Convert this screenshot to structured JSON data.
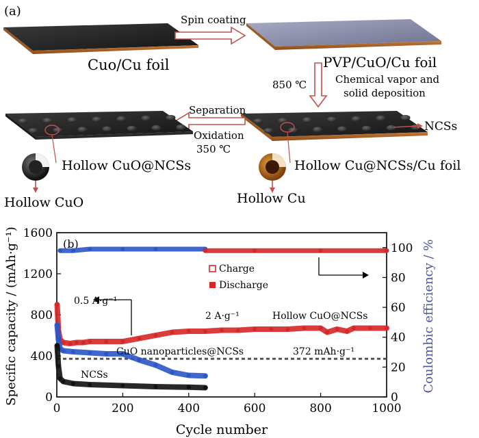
{
  "panel_a": {
    "label": "(a)",
    "step_spin": "Spin coating",
    "foil_1": "Cuo/Cu foil",
    "foil_2": "PVP/CuO/Cu foil",
    "temp_850": "850 ℃",
    "cvd_line1": "Chemical vapor and",
    "cvd_line2": "solid deposition",
    "ncss": "NCSs",
    "sep": "Separation",
    "oxid": "Oxidation",
    "temp_350": "350 ℃",
    "hollow_cuo_ncss": "Hollow CuO@NCSs",
    "hollow_cu_ncss": "Hollow Cu@NCSs/Cu foil",
    "hollow_cuo": "Hollow CuO",
    "hollow_cu": "Hollow Cu",
    "colors": {
      "copper": "#b5651d",
      "dark_film": "#2a2a2a",
      "pvp_film": "#8c8fa8",
      "arrow": "#c0504d"
    }
  },
  "panel_b": {
    "label": "(b)",
    "legend": {
      "charge": "Charge",
      "discharge": "Discharge"
    },
    "ann_current": "0.5 A·g⁻¹",
    "ann_current2": "2 A·g⁻¹",
    "ann_hollow": "Hollow CuO@NCSs",
    "ann_cuo": "CuO nanoparticles@NCSs",
    "ann_ncss": "NCSs",
    "ann_372": "372 mAh·g⁻¹"
  },
  "chart_data": {
    "type": "line",
    "xlabel": "Cycle number",
    "ylabel": "Specific capacity / (mAh·g⁻¹)",
    "y2label": "Coulombic efficiency / %",
    "xlim": [
      0,
      1000
    ],
    "ylim": [
      0,
      1600
    ],
    "y2lim": [
      0,
      110
    ],
    "xticks": [
      0,
      200,
      400,
      600,
      800,
      1000
    ],
    "yticks": [
      0,
      400,
      800,
      1200,
      1600
    ],
    "y2ticks": [
      0,
      20,
      40,
      60,
      80,
      100
    ],
    "reference_line": {
      "y": 372,
      "style": "dashed"
    },
    "series": [
      {
        "name": "Hollow CuO@NCSs",
        "color": "#d62728",
        "axis": "left",
        "x": [
          1,
          5,
          10,
          20,
          40,
          60,
          80,
          100,
          150,
          200,
          250,
          300,
          350,
          400,
          450,
          500,
          550,
          600,
          650,
          700,
          750,
          800,
          820,
          850,
          880,
          900,
          950,
          1000
        ],
        "y": [
          900,
          650,
          560,
          530,
          520,
          530,
          530,
          540,
          540,
          540,
          570,
          600,
          630,
          640,
          640,
          650,
          650,
          660,
          660,
          660,
          670,
          670,
          630,
          660,
          640,
          670,
          670,
          670
        ]
      },
      {
        "name": "CuO nanoparticles@NCSs",
        "color": "#2a56c6",
        "axis": "left",
        "x": [
          1,
          5,
          10,
          20,
          50,
          100,
          150,
          200,
          250,
          300,
          350,
          400,
          450
        ],
        "y": [
          700,
          560,
          470,
          450,
          440,
          430,
          420,
          420,
          360,
          310,
          240,
          210,
          205
        ]
      },
      {
        "name": "NCSs",
        "color": "#111111",
        "axis": "left",
        "x": [
          1,
          5,
          10,
          20,
          50,
          100,
          200,
          300,
          400,
          450
        ],
        "y": [
          500,
          300,
          180,
          150,
          130,
          120,
          110,
          100,
          95,
          90
        ]
      },
      {
        "name": "Coulombic efficiency",
        "color": "#2a56c6",
        "axis": "right",
        "x": [
          10,
          50,
          100,
          200,
          300,
          450
        ],
        "y": [
          98,
          98,
          99,
          99,
          99,
          99
        ]
      },
      {
        "name": "Coulombic efficiency",
        "color": "#d62728",
        "axis": "right",
        "x": [
          450,
          600,
          800,
          1000
        ],
        "y": [
          98,
          98,
          98,
          98
        ]
      }
    ]
  },
  "axes": {
    "xlabel": "Cycle number",
    "ylabel": "Specific capacity / (mAh·g⁻¹)",
    "y2label": "Coulombic efficiency / %",
    "y2label_color": "#4a52a8"
  }
}
